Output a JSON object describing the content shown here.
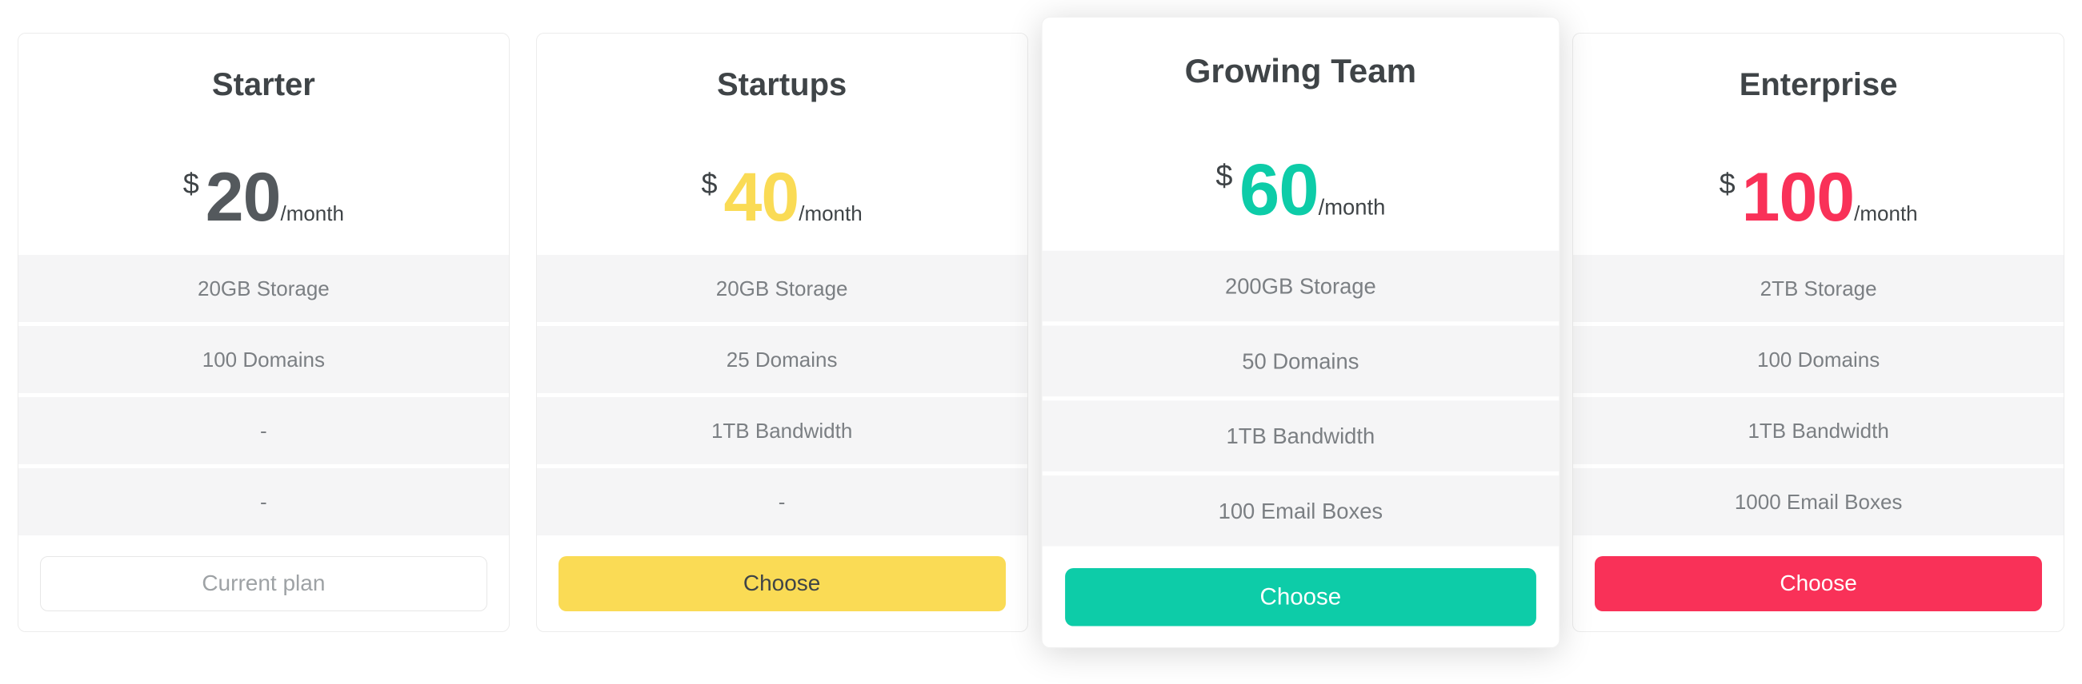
{
  "page": {
    "background": "#ffffff",
    "row_background": "#f5f5f6",
    "card_border": "#ececec",
    "title_color": "#3f4447",
    "feature_text_color": "#7b7f83"
  },
  "plans": [
    {
      "name": "Starter",
      "currency": "$",
      "price": "20",
      "period": "/month",
      "featured": false,
      "features": [
        "20GB Storage",
        "100 Domains",
        "-",
        "-"
      ],
      "button": {
        "label": "Current plan"
      },
      "colors": {
        "price": "#54595d",
        "button_bg": "#ffffff",
        "button_text": "#9ea2a5",
        "button_border": "#e7e7e7"
      }
    },
    {
      "name": "Startups",
      "currency": "$",
      "price": "40",
      "period": "/month",
      "featured": false,
      "features": [
        "20GB Storage",
        "25 Domains",
        "1TB Bandwidth",
        "-"
      ],
      "button": {
        "label": "Choose"
      },
      "colors": {
        "price": "#fadb55",
        "button_bg": "#fadb55",
        "button_text": "#3f4447",
        "button_border": "transparent"
      }
    },
    {
      "name": "Growing Team",
      "currency": "$",
      "price": "60",
      "period": "/month",
      "featured": true,
      "features": [
        "200GB Storage",
        "50 Domains",
        "1TB Bandwidth",
        "100 Email Boxes"
      ],
      "button": {
        "label": "Choose"
      },
      "colors": {
        "price": "#0dcca8",
        "button_bg": "#0dcca8",
        "button_text": "#ffffff",
        "button_border": "transparent"
      }
    },
    {
      "name": "Enterprise",
      "currency": "$",
      "price": "100",
      "period": "/month",
      "featured": false,
      "features": [
        "2TB Storage",
        "100 Domains",
        "1TB Bandwidth",
        "1000 Email Boxes"
      ],
      "button": {
        "label": "Choose"
      },
      "colors": {
        "price": "#f93158",
        "button_bg": "#f93158",
        "button_text": "#ffffff",
        "button_border": "transparent"
      }
    }
  ]
}
